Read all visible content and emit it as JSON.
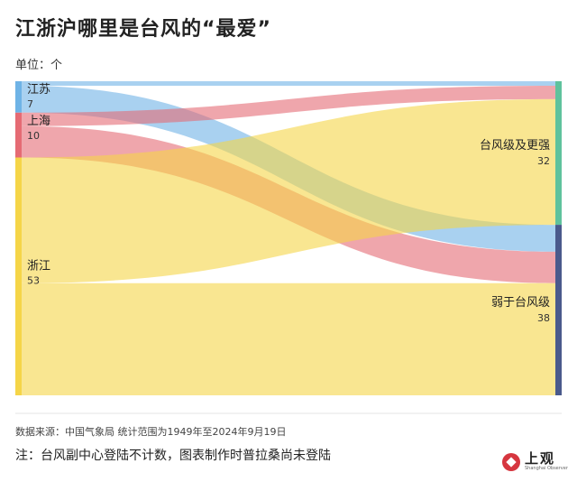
{
  "title": "江浙沪哪里是台风的“最爱”",
  "unit_label": "单位：个",
  "source": "数据来源：中国气象局 统计范围为1949年至2024年9月19日",
  "note": "注：台风副中心登陆不计数，图表制作时普拉桑尚未登陆",
  "logo": {
    "text": "上观",
    "sub": "Shanghai Observer"
  },
  "colors": {
    "jiangsu": "#6fb3e6",
    "shanghai": "#e56b74",
    "zhejiang": "#f5d548",
    "strong": "#5fc29d",
    "weak": "#4a5a8c"
  },
  "chart_data": {
    "type": "sankey",
    "title": "江浙沪哪里是台风的“最爱”",
    "unit": "单位：个",
    "sources": [
      {
        "id": "jiangsu",
        "label": "江苏",
        "value": 7
      },
      {
        "id": "shanghai",
        "label": "上海",
        "value": 10
      },
      {
        "id": "zhejiang",
        "label": "浙江",
        "value": 53
      }
    ],
    "targets": [
      {
        "id": "strong",
        "label": "台风级及更强",
        "value": 32
      },
      {
        "id": "weak",
        "label": "弱于台风级",
        "value": 38
      }
    ],
    "links": [
      {
        "source": "jiangsu",
        "target": "strong",
        "value": 1
      },
      {
        "source": "jiangsu",
        "target": "weak",
        "value": 6
      },
      {
        "source": "shanghai",
        "target": "strong",
        "value": 3
      },
      {
        "source": "shanghai",
        "target": "weak",
        "value": 7
      },
      {
        "source": "zhejiang",
        "target": "strong",
        "value": 28
      },
      {
        "source": "zhejiang",
        "target": "weak",
        "value": 25
      }
    ]
  }
}
